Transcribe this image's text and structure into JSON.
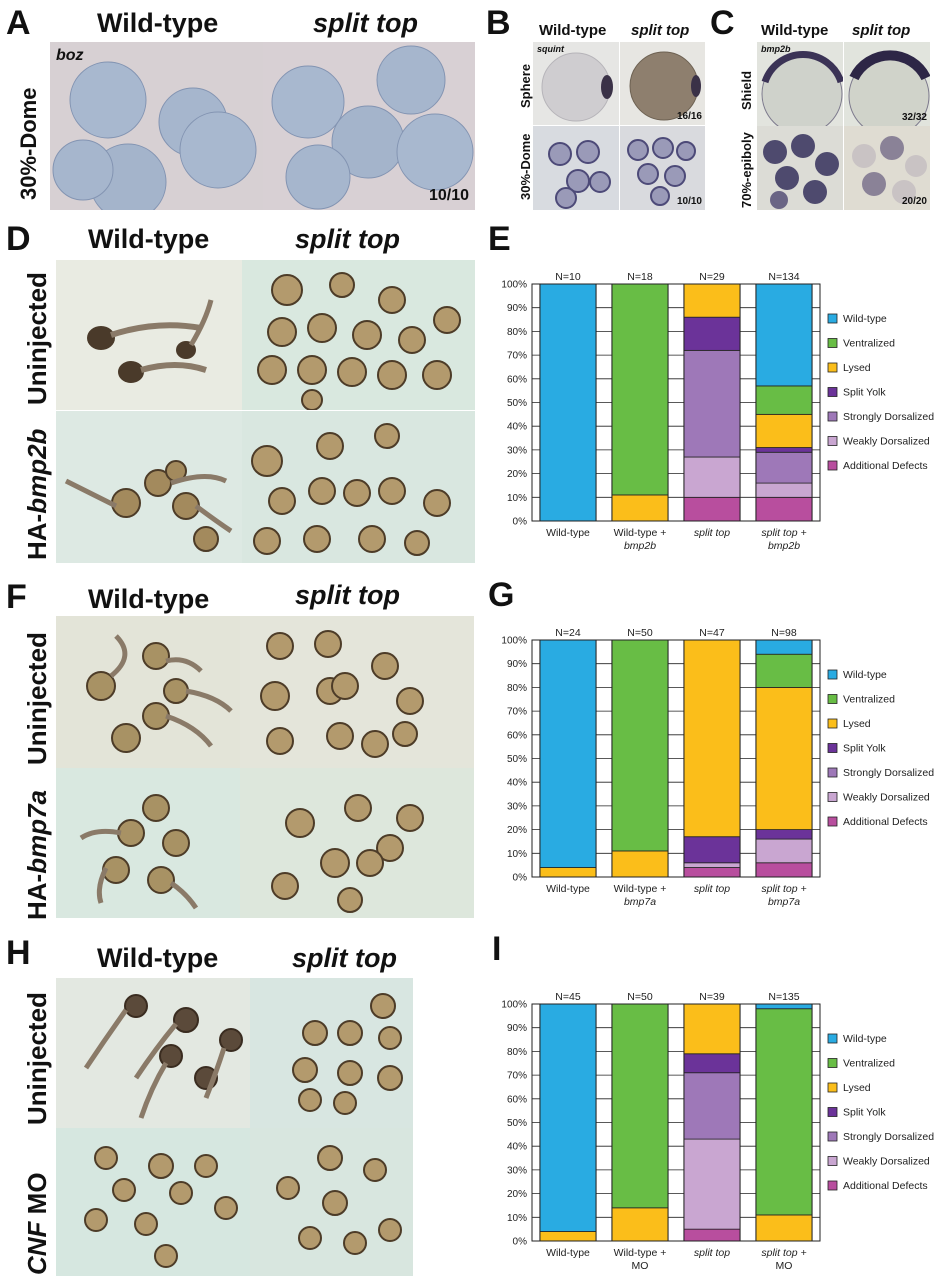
{
  "colors": {
    "wild_type": "#29abe2",
    "ventralized": "#68bd45",
    "lysed": "#fbbe1a",
    "split_yolk": "#6b3399",
    "strongly_dorsalized": "#9e78b8",
    "weakly_dorsalized": "#c9a6d1",
    "additional_defects": "#b84e9e"
  },
  "panel_a": {
    "letter": "A",
    "col1": "Wild-type",
    "col2": "split top",
    "row": "30%-Dome",
    "probe": "boz",
    "count": "10/10"
  },
  "panel_b": {
    "letter": "B",
    "col1": "Wild-type",
    "col2": "split top",
    "row1": "Sphere",
    "row2": "30%-Dome",
    "probe": "squint",
    "count1": "16/16",
    "count2": "10/10"
  },
  "panel_c": {
    "letter": "C",
    "col1": "Wild-type",
    "col2": "split top",
    "row1": "Shield",
    "row2": "70%-epiboly",
    "probe": "bmp2b",
    "count1": "32/32",
    "count2": "20/20"
  },
  "panel_d": {
    "letter": "D",
    "col1": "Wild-type",
    "col2": "split top",
    "row1": "Uninjected",
    "row2_prefix": "HA-",
    "row2_gene": "bmp2b"
  },
  "panel_f": {
    "letter": "F",
    "col1": "Wild-type",
    "col2": "split top",
    "row1": "Uninjected",
    "row2_prefix": "HA-",
    "row2_gene": "bmp7a"
  },
  "panel_h": {
    "letter": "H",
    "col1": "Wild-type",
    "col2": "split top",
    "row1": "Uninjected",
    "row2_gene": "CNF",
    "row2_suffix": " MO"
  },
  "chart_data": [
    {
      "panel": "E",
      "type": "bar",
      "stacked": true,
      "ylim": [
        0,
        100
      ],
      "yticks": [
        "0%",
        "10%",
        "20%",
        "30%",
        "40%",
        "50%",
        "60%",
        "70%",
        "80%",
        "90%",
        "100%"
      ],
      "categories": [
        {
          "line1": "Wild-type",
          "line2": "",
          "line1_italic": false,
          "line2_italic": false
        },
        {
          "line1": "Wild-type +",
          "line2": "bmp2b",
          "line1_italic": false,
          "line2_italic": true
        },
        {
          "line1": "split top",
          "line2": "",
          "line1_italic": true,
          "line2_italic": false
        },
        {
          "line1": "split top +",
          "line2": "bmp2b",
          "line1_italic": true,
          "line2_italic": true
        }
      ],
      "n_labels": [
        "N=10",
        "N=18",
        "N=29",
        "N=134"
      ],
      "legend": [
        "Wild-type",
        "Ventralized",
        "Lysed",
        "Split Yolk",
        "Strongly Dorsalized",
        "Weakly Dorsalized",
        "Additional Defects"
      ],
      "series": [
        {
          "name": "Additional Defects",
          "values": [
            0,
            0,
            10,
            10
          ]
        },
        {
          "name": "Weakly Dorsalized",
          "values": [
            0,
            0,
            17,
            6
          ]
        },
        {
          "name": "Strongly Dorsalized",
          "values": [
            0,
            0,
            45,
            13
          ]
        },
        {
          "name": "Split Yolk",
          "values": [
            0,
            0,
            14,
            2
          ]
        },
        {
          "name": "Lysed",
          "values": [
            0,
            11,
            14,
            14
          ]
        },
        {
          "name": "Ventralized",
          "values": [
            0,
            89,
            0,
            12
          ]
        },
        {
          "name": "Wild-type",
          "values": [
            100,
            0,
            0,
            43
          ]
        }
      ]
    },
    {
      "panel": "G",
      "type": "bar",
      "stacked": true,
      "ylim": [
        0,
        100
      ],
      "yticks": [
        "0%",
        "10%",
        "20%",
        "30%",
        "40%",
        "50%",
        "60%",
        "70%",
        "80%",
        "90%",
        "100%"
      ],
      "categories": [
        {
          "line1": "Wild-type",
          "line2": "",
          "line1_italic": false,
          "line2_italic": false
        },
        {
          "line1": "Wild-type +",
          "line2": "bmp7a",
          "line1_italic": false,
          "line2_italic": true
        },
        {
          "line1": "split top",
          "line2": "",
          "line1_italic": true,
          "line2_italic": false
        },
        {
          "line1": "split top +",
          "line2": "bmp7a",
          "line1_italic": true,
          "line2_italic": true
        }
      ],
      "n_labels": [
        "N=24",
        "N=50",
        "N=47",
        "N=98"
      ],
      "legend": [
        "Wild-type",
        "Ventralized",
        "Lysed",
        "Split Yolk",
        "Strongly Dorsalized",
        "Weakly Dorsalized",
        "Additional Defects"
      ],
      "series": [
        {
          "name": "Additional Defects",
          "values": [
            0,
            0,
            4,
            6
          ]
        },
        {
          "name": "Weakly Dorsalized",
          "values": [
            0,
            0,
            2,
            10
          ]
        },
        {
          "name": "Strongly Dorsalized",
          "values": [
            0,
            0,
            0,
            0
          ]
        },
        {
          "name": "Split Yolk",
          "values": [
            0,
            0,
            11,
            4
          ]
        },
        {
          "name": "Lysed",
          "values": [
            4,
            11,
            83,
            60
          ]
        },
        {
          "name": "Ventralized",
          "values": [
            0,
            89,
            0,
            14
          ]
        },
        {
          "name": "Wild-type",
          "values": [
            96,
            0,
            0,
            6
          ]
        }
      ]
    },
    {
      "panel": "I",
      "type": "bar",
      "stacked": true,
      "ylim": [
        0,
        100
      ],
      "yticks": [
        "0%",
        "10%",
        "20%",
        "30%",
        "40%",
        "50%",
        "60%",
        "70%",
        "80%",
        "90%",
        "100%"
      ],
      "categories": [
        {
          "line1": "Wild-type",
          "line2": "",
          "line1_italic": false,
          "line2_italic": false
        },
        {
          "line1": "Wild-type +",
          "line2": "MO",
          "line1_italic": false,
          "line2_italic": false
        },
        {
          "line1": "split top",
          "line2": "",
          "line1_italic": true,
          "line2_italic": false
        },
        {
          "line1": "split top +",
          "line2": "MO",
          "line1_italic": true,
          "line2_italic": false
        }
      ],
      "n_labels": [
        "N=45",
        "N=50",
        "N=39",
        "N=135"
      ],
      "legend": [
        "Wild-type",
        "Ventralized",
        "Lysed",
        "Split Yolk",
        "Strongly Dorsalized",
        "Weakly Dorsalized",
        "Additional Defects"
      ],
      "series": [
        {
          "name": "Additional Defects",
          "values": [
            0,
            0,
            5,
            0
          ]
        },
        {
          "name": "Weakly Dorsalized",
          "values": [
            0,
            0,
            38,
            0
          ]
        },
        {
          "name": "Strongly Dorsalized",
          "values": [
            0,
            0,
            28,
            0
          ]
        },
        {
          "name": "Split Yolk",
          "values": [
            0,
            0,
            8,
            0
          ]
        },
        {
          "name": "Lysed",
          "values": [
            4,
            14,
            21,
            11
          ]
        },
        {
          "name": "Ventralized",
          "values": [
            0,
            86,
            0,
            87
          ]
        },
        {
          "name": "Wild-type",
          "values": [
            96,
            0,
            0,
            2
          ]
        }
      ]
    }
  ]
}
